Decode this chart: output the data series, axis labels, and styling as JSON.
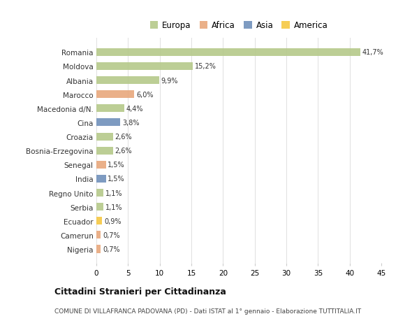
{
  "countries": [
    "Romania",
    "Moldova",
    "Albania",
    "Marocco",
    "Macedonia d/N.",
    "Cina",
    "Croazia",
    "Bosnia-Erzegovina",
    "Senegal",
    "India",
    "Regno Unito",
    "Serbia",
    "Ecuador",
    "Camerun",
    "Nigeria"
  ],
  "values": [
    41.7,
    15.2,
    9.9,
    6.0,
    4.4,
    3.8,
    2.6,
    2.6,
    1.5,
    1.5,
    1.1,
    1.1,
    0.9,
    0.7,
    0.7
  ],
  "labels": [
    "41,7%",
    "15,2%",
    "9,9%",
    "6,0%",
    "4,4%",
    "3,8%",
    "2,6%",
    "2,6%",
    "1,5%",
    "1,5%",
    "1,1%",
    "1,1%",
    "0,9%",
    "0,7%",
    "0,7%"
  ],
  "colors": [
    "#b5c98a",
    "#b5c98a",
    "#b5c98a",
    "#e8a87c",
    "#b5c98a",
    "#7090bb",
    "#b5c98a",
    "#b5c98a",
    "#e8a87c",
    "#7090bb",
    "#b5c98a",
    "#b5c98a",
    "#f5c842",
    "#e8a87c",
    "#e8a87c"
  ],
  "legend_labels": [
    "Europa",
    "Africa",
    "Asia",
    "America"
  ],
  "legend_colors": [
    "#b5c98a",
    "#e8a87c",
    "#7090bb",
    "#f5c842"
  ],
  "title": "Cittadini Stranieri per Cittadinanza",
  "subtitle": "COMUNE DI VILLAFRANCA PADOVANA (PD) - Dati ISTAT al 1° gennaio - Elaborazione TUTTITALIA.IT",
  "xlim": [
    0,
    45
  ],
  "xticks": [
    0,
    5,
    10,
    15,
    20,
    25,
    30,
    35,
    40,
    45
  ],
  "bg_color": "#ffffff",
  "bar_height": 0.55
}
